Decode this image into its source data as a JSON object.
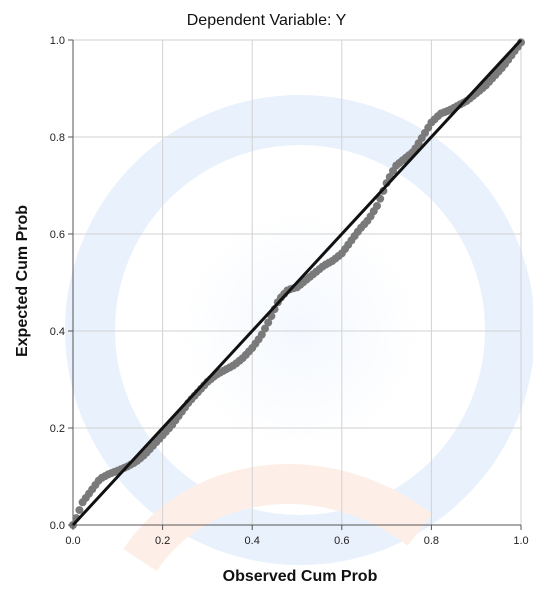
{
  "chart_data": {
    "type": "scatter",
    "title": "Dependent Variable: Y",
    "xlabel": "Observed Cum Prob",
    "ylabel": "Expected Cum Prob",
    "xlim": [
      0,
      1
    ],
    "ylim": [
      0,
      1
    ],
    "xticks": [
      "0.0",
      "0.2",
      "0.4",
      "0.6",
      "0.8",
      "1.0"
    ],
    "yticks": [
      "0.0",
      "0.2",
      "0.4",
      "0.6",
      "0.8",
      "1.0"
    ],
    "grid": true,
    "reference_line": {
      "x": [
        0,
        1
      ],
      "y": [
        0,
        1
      ]
    },
    "curve": {
      "x": [
        0.0,
        0.01,
        0.02,
        0.04,
        0.06,
        0.08,
        0.1,
        0.12,
        0.14,
        0.16,
        0.18,
        0.2,
        0.22,
        0.24,
        0.26,
        0.28,
        0.3,
        0.32,
        0.34,
        0.36,
        0.38,
        0.4,
        0.42,
        0.44,
        0.46,
        0.48,
        0.5,
        0.52,
        0.54,
        0.56,
        0.58,
        0.6,
        0.62,
        0.64,
        0.66,
        0.68,
        0.7,
        0.72,
        0.74,
        0.76,
        0.78,
        0.8,
        0.82,
        0.84,
        0.86,
        0.88,
        0.9,
        0.92,
        0.94,
        0.96,
        0.98,
        1.0
      ],
      "y": [
        0.0,
        0.02,
        0.045,
        0.07,
        0.095,
        0.105,
        0.112,
        0.12,
        0.13,
        0.145,
        0.165,
        0.185,
        0.205,
        0.23,
        0.255,
        0.275,
        0.295,
        0.31,
        0.32,
        0.33,
        0.345,
        0.365,
        0.39,
        0.425,
        0.465,
        0.485,
        0.49,
        0.505,
        0.52,
        0.535,
        0.545,
        0.56,
        0.585,
        0.61,
        0.63,
        0.66,
        0.705,
        0.74,
        0.755,
        0.77,
        0.8,
        0.83,
        0.848,
        0.855,
        0.865,
        0.875,
        0.89,
        0.905,
        0.925,
        0.945,
        0.97,
        0.995
      ]
    }
  }
}
